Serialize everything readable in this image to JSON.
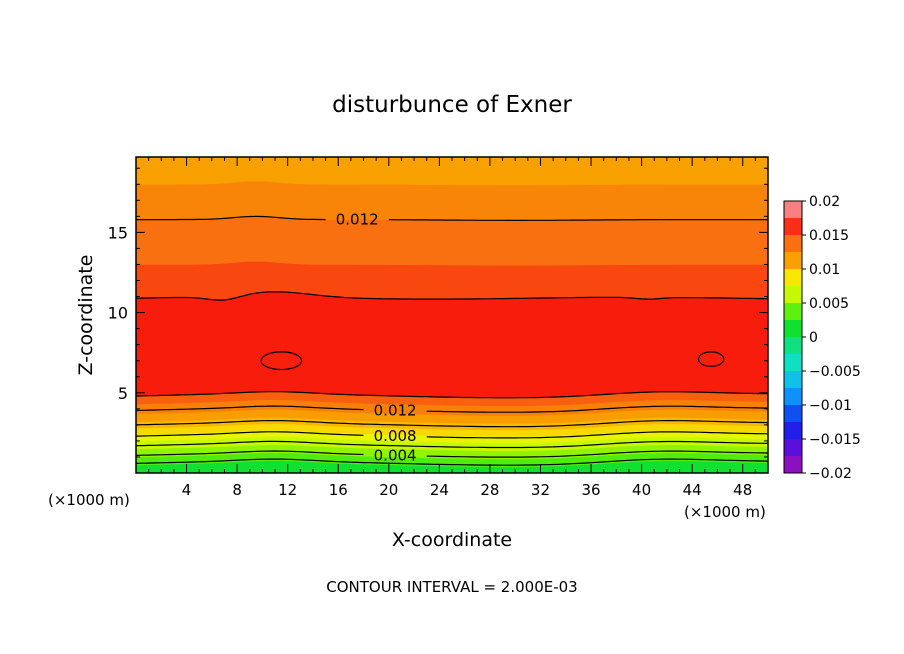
{
  "chart_data": {
    "type": "contour",
    "title": "disturbunce of Exner",
    "xlabel": "X-coordinate",
    "ylabel": "Z-coordinate",
    "x_unit_left": "(×1000 m)",
    "x_unit_right": "(×1000 m)",
    "footer": "CONTOUR INTERVAL = 2.000E-03",
    "xlim": [
      0,
      50
    ],
    "ylim": [
      0,
      19.7
    ],
    "x_ticks": [
      4,
      8,
      12,
      16,
      20,
      24,
      28,
      32,
      36,
      40,
      44,
      48
    ],
    "y_ticks": [
      5,
      10,
      15
    ],
    "contour_interval": 0.002,
    "colorbar": {
      "min": -0.02,
      "max": 0.02,
      "tick_values": [
        0.02,
        0.015,
        0.01,
        0.005,
        0,
        -0.005,
        -0.01,
        -0.015,
        -0.02
      ],
      "tick_labels": [
        "0.02",
        "0.015",
        "0.01",
        "0.005",
        "0",
        "−0.005",
        "−0.01",
        "−0.015",
        "−0.02"
      ],
      "bands": [
        {
          "from": -0.02,
          "to": -0.0175,
          "color": "#8a10c0"
        },
        {
          "from": -0.0175,
          "to": -0.015,
          "color": "#5a10d8"
        },
        {
          "from": -0.015,
          "to": -0.0125,
          "color": "#2020e8"
        },
        {
          "from": -0.0125,
          "to": -0.01,
          "color": "#1050f0"
        },
        {
          "from": -0.01,
          "to": -0.0075,
          "color": "#1090f8"
        },
        {
          "from": -0.0075,
          "to": -0.005,
          "color": "#10c0e8"
        },
        {
          "from": -0.005,
          "to": -0.0025,
          "color": "#10e0c0"
        },
        {
          "from": -0.0025,
          "to": 0,
          "color": "#10e080"
        },
        {
          "from": 0,
          "to": 0.0025,
          "color": "#10e030"
        },
        {
          "from": 0.0025,
          "to": 0.005,
          "color": "#60f010"
        },
        {
          "from": 0.005,
          "to": 0.0075,
          "color": "#c8f800"
        },
        {
          "from": 0.0075,
          "to": 0.01,
          "color": "#f8e800"
        },
        {
          "from": 0.01,
          "to": 0.0125,
          "color": "#f8a000"
        },
        {
          "from": 0.0125,
          "to": 0.015,
          "color": "#f87010"
        },
        {
          "from": 0.015,
          "to": 0.0175,
          "color": "#f83018"
        },
        {
          "from": 0.0175,
          "to": 0.02,
          "color": "#f88080"
        }
      ]
    },
    "field_bands": [
      {
        "z_from": 0.0,
        "z_to": 0.5,
        "color": "#10e030"
      },
      {
        "z_from": 0.5,
        "z_to": 1.0,
        "color": "#50ec10"
      },
      {
        "z_from": 1.0,
        "z_to": 1.5,
        "color": "#90f400"
      },
      {
        "z_from": 1.5,
        "z_to": 2.0,
        "color": "#c8f800"
      },
      {
        "z_from": 2.0,
        "z_to": 2.4,
        "color": "#e8f400"
      },
      {
        "z_from": 2.4,
        "z_to": 2.8,
        "color": "#f8d800"
      },
      {
        "z_from": 2.8,
        "z_to": 3.2,
        "color": "#f8b800"
      },
      {
        "z_from": 3.2,
        "z_to": 3.7,
        "color": "#f89c00"
      },
      {
        "z_from": 3.7,
        "z_to": 4.3,
        "color": "#f88008"
      },
      {
        "z_from": 4.3,
        "z_to": 4.8,
        "color": "#f86010"
      },
      {
        "z_from": 4.8,
        "z_to": 10.9,
        "color": "#f81c0c"
      },
      {
        "z_from": 10.9,
        "z_to": 13.0,
        "color": "#f84810"
      },
      {
        "z_from": 13.0,
        "z_to": 15.8,
        "color": "#f87010"
      },
      {
        "z_from": 15.8,
        "z_to": 18.0,
        "color": "#f88408"
      },
      {
        "z_from": 18.0,
        "z_to": 19.7,
        "color": "#f8a000"
      }
    ],
    "contour_lines": [
      {
        "z": 0.6,
        "label": ""
      },
      {
        "z": 1.1,
        "label": "0.004",
        "label_x": 20.5
      },
      {
        "z": 1.7,
        "label": ""
      },
      {
        "z": 2.3,
        "label": "0.008",
        "label_x": 20.5
      },
      {
        "z": 3.0,
        "label": ""
      },
      {
        "z": 3.9,
        "label": "0.012",
        "label_x": 20.5
      },
      {
        "z": 4.8,
        "label": ""
      },
      {
        "z": 10.9,
        "label": ""
      },
      {
        "z": 15.8,
        "label": "0.012",
        "label_x": 17.5
      }
    ],
    "closed_contours": [
      {
        "x": 11.5,
        "z": 7.0,
        "rx": 1.6,
        "rz": 0.55
      },
      {
        "x": 45.5,
        "z": 7.1,
        "rx": 1.0,
        "rz": 0.45
      }
    ]
  }
}
